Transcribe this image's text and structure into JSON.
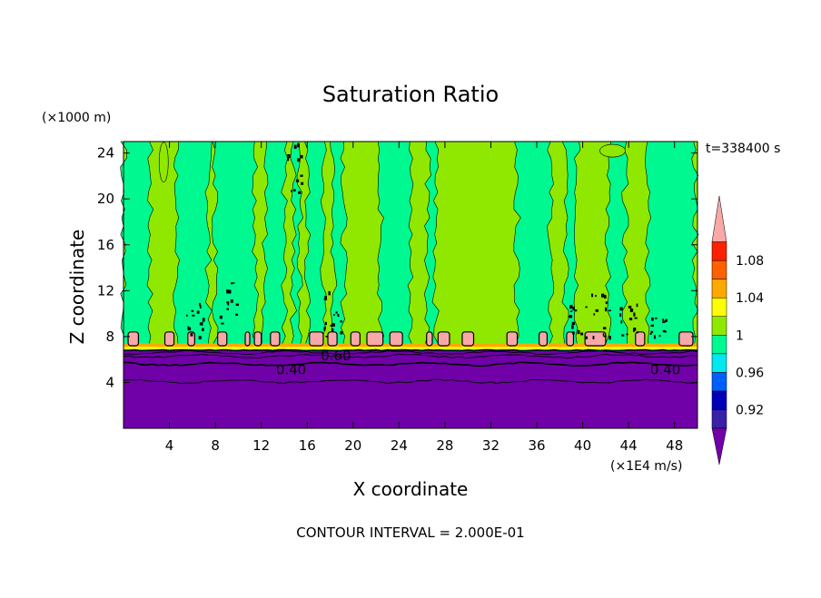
{
  "chart_data": {
    "type": "heatmap",
    "title": "Saturation Ratio",
    "xlabel": "X coordinate",
    "ylabel": "Z coordinate",
    "x_unit": "(×1E4 m/s)",
    "y_unit": "(×1000 m)",
    "time_label": "t=338400 s",
    "footer": "CONTOUR INTERVAL = 2.000E-01",
    "xlim": [
      0,
      50
    ],
    "ylim": [
      0,
      25
    ],
    "x_ticks": [
      4,
      8,
      12,
      16,
      20,
      24,
      28,
      32,
      36,
      40,
      44,
      48
    ],
    "y_ticks": [
      4,
      8,
      12,
      16,
      20,
      24
    ],
    "x_tick_labels": [
      "4",
      "8",
      "12",
      "16",
      "20",
      "24",
      "28",
      "32",
      "36",
      "40",
      "44",
      "48"
    ],
    "y_tick_labels": [
      "4",
      "8",
      "12",
      "16",
      "20",
      "24"
    ],
    "colorbar": {
      "tick_values": [
        0.92,
        0.96,
        1,
        1.04,
        1.08
      ],
      "tick_labels": [
        "0.92",
        "0.96",
        "1",
        "1.04",
        "1.08"
      ],
      "levels": [
        {
          "upper": 0.9,
          "color": "#7000a8"
        },
        {
          "upper": 0.92,
          "color": "#3820a8"
        },
        {
          "upper": 0.94,
          "color": "#0000b8"
        },
        {
          "upper": 0.96,
          "color": "#0060ff"
        },
        {
          "upper": 0.98,
          "color": "#00e8f0"
        },
        {
          "upper": 1.0,
          "color": "#00f890"
        },
        {
          "upper": 1.02,
          "color": "#90e800"
        },
        {
          "upper": 1.04,
          "color": "#ffff00"
        },
        {
          "upper": 1.06,
          "color": "#ffa800"
        },
        {
          "upper": 1.08,
          "color": "#ff6000"
        },
        {
          "upper": 1.1,
          "color": "#ff2000"
        },
        {
          "upper": null,
          "color": "#f8a8a8"
        }
      ]
    },
    "contour_labels": [
      {
        "text": "0.40",
        "x": 14.6,
        "y": 5.2
      },
      {
        "text": "0.40",
        "x": 47.2,
        "y": 5.2
      },
      {
        "text": "0.60",
        "x": 18.5,
        "y": 6.4
      }
    ],
    "green_columns": [
      [
        0,
        2.3
      ],
      [
        4.6,
        7.4
      ],
      [
        8.0,
        11.5
      ],
      [
        12.3,
        14.0
      ],
      [
        14.8,
        15.4
      ],
      [
        16.0,
        17.4
      ],
      [
        18.3,
        19.2
      ],
      [
        22.4,
        25.0
      ],
      [
        26.5,
        27.2
      ],
      [
        34.3,
        37.2
      ],
      [
        38.5,
        39.5
      ],
      [
        42.2,
        43.7
      ],
      [
        45.7,
        49.8
      ]
    ],
    "pink_blobs": [
      [
        0.4,
        1.3
      ],
      [
        3.6,
        4.4
      ],
      [
        5.6,
        6.2
      ],
      [
        8.2,
        9.0
      ],
      [
        10.6,
        11.0
      ],
      [
        11.4,
        12.0
      ],
      [
        12.8,
        13.6
      ],
      [
        16.2,
        17.4
      ],
      [
        17.8,
        18.6
      ],
      [
        19.8,
        20.6
      ],
      [
        21.2,
        22.6
      ],
      [
        23.2,
        24.3
      ],
      [
        26.4,
        26.9
      ],
      [
        27.4,
        28.4
      ],
      [
        29.5,
        30.5
      ],
      [
        33.4,
        34.3
      ],
      [
        36.2,
        36.9
      ],
      [
        38.6,
        39.2
      ],
      [
        40.2,
        42.0
      ],
      [
        44.6,
        45.4
      ],
      [
        48.4,
        49.6
      ]
    ],
    "contours": [
      0.2,
      0.4,
      0.6,
      0.8
    ]
  }
}
